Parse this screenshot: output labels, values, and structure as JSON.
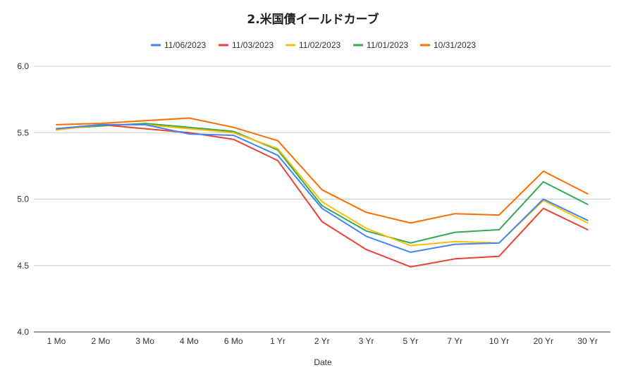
{
  "chart_data": {
    "type": "line",
    "title": "2.米国債イールドカーブ",
    "xlabel": "Date",
    "ylabel": "",
    "ylim": [
      4.0,
      6.0
    ],
    "yticks": [
      "4.0",
      "4.5",
      "5.0",
      "5.5",
      "6.0"
    ],
    "grid": true,
    "legend_position": "top",
    "categories": [
      "1 Mo",
      "2 Mo",
      "3 Mo",
      "4 Mo",
      "6 Mo",
      "1 Yr",
      "2 Yr",
      "3 Yr",
      "5 Yr",
      "7 Yr",
      "10 Yr",
      "20 Yr",
      "30 Yr"
    ],
    "series": [
      {
        "name": "11/06/2023",
        "color": "#4285f4",
        "values": [
          5.53,
          5.56,
          5.56,
          5.49,
          5.48,
          5.33,
          4.93,
          4.72,
          4.6,
          4.66,
          4.67,
          5.0,
          4.84
        ]
      },
      {
        "name": "11/03/2023",
        "color": "#ea4335",
        "values": [
          5.53,
          5.56,
          5.53,
          5.5,
          5.45,
          5.29,
          4.83,
          4.62,
          4.49,
          4.55,
          4.57,
          4.93,
          4.77
        ]
      },
      {
        "name": "11/02/2023",
        "color": "#fbbc04",
        "values": [
          5.52,
          5.56,
          5.56,
          5.53,
          5.5,
          5.38,
          4.98,
          4.78,
          4.65,
          4.68,
          4.67,
          4.99,
          4.82
        ]
      },
      {
        "name": "11/01/2023",
        "color": "#34a853",
        "values": [
          5.53,
          5.55,
          5.57,
          5.54,
          5.51,
          5.37,
          4.95,
          4.76,
          4.67,
          4.75,
          4.77,
          5.13,
          4.96
        ]
      },
      {
        "name": "10/31/2023",
        "color": "#ff6d01",
        "values": [
          5.56,
          5.57,
          5.59,
          5.61,
          5.54,
          5.44,
          5.07,
          4.9,
          4.82,
          4.89,
          4.88,
          5.21,
          5.04
        ]
      }
    ]
  }
}
